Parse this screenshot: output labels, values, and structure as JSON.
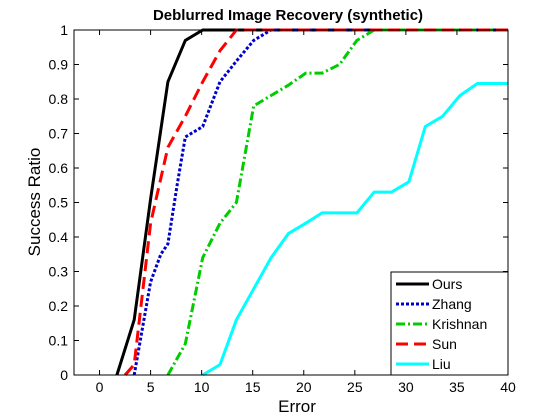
{
  "chart_data": {
    "type": "line",
    "title": "Deblurred Image Recovery (synthetic)",
    "xlabel": "Error",
    "ylabel": "Success Ratio",
    "xlim": [
      -2.5,
      40
    ],
    "ylim": [
      0,
      1
    ],
    "xticks": [
      0,
      5,
      10,
      15,
      20,
      25,
      30,
      35,
      40
    ],
    "yticks": [
      0,
      0.1,
      0.2,
      0.3,
      0.4,
      0.5,
      0.6,
      0.7,
      0.8,
      0.9,
      1
    ],
    "grid": false,
    "legend_position": "bottom-right",
    "series": [
      {
        "name": "Ours",
        "color": "#000000",
        "dash": "solid",
        "x": [
          1.7,
          3.4,
          5.0,
          6.7,
          8.4,
          10.1,
          11.8,
          13.4,
          15.1,
          16.8,
          40
        ],
        "y": [
          0,
          0.16,
          0.51,
          0.85,
          0.97,
          1.0,
          1.0,
          1.0,
          1.0,
          1.0,
          1.0
        ]
      },
      {
        "name": "Zhang",
        "color": "#0000cc",
        "dash": "dot",
        "x": [
          3.4,
          5.0,
          6.0,
          6.7,
          7.6,
          8.4,
          10.1,
          11.8,
          13.4,
          15.1,
          16.8,
          40
        ],
        "y": [
          0,
          0.27,
          0.35,
          0.38,
          0.55,
          0.69,
          0.72,
          0.85,
          0.91,
          0.97,
          1.0,
          1.0
        ]
      },
      {
        "name": "Krishnan",
        "color": "#00cc00",
        "dash": "dashdot",
        "x": [
          6.7,
          8.4,
          10.1,
          11.8,
          13.4,
          15.1,
          16.8,
          18.5,
          20.2,
          21.8,
          23.5,
          25.2,
          26.9,
          40
        ],
        "y": [
          0,
          0.09,
          0.34,
          0.44,
          0.5,
          0.78,
          0.81,
          0.84,
          0.875,
          0.875,
          0.9,
          0.97,
          1.0,
          1.0
        ]
      },
      {
        "name": "Sun",
        "color": "#ff0000",
        "dash": "dash",
        "x": [
          2.5,
          3.4,
          5.0,
          6.7,
          8.4,
          10.1,
          11.8,
          13.4,
          15.1,
          40
        ],
        "y": [
          0,
          0.03,
          0.44,
          0.66,
          0.75,
          0.85,
          0.94,
          1.0,
          1.0,
          1.0
        ]
      },
      {
        "name": "Liu",
        "color": "#00ffff",
        "dash": "solid",
        "x": [
          10.1,
          11.8,
          13.4,
          15.1,
          16.8,
          18.5,
          20.2,
          21.8,
          23.5,
          25.2,
          26.9,
          28.6,
          30.3,
          31.9,
          33.6,
          35.3,
          37.0,
          40
        ],
        "y": [
          0,
          0.03,
          0.16,
          0.25,
          0.34,
          0.41,
          0.44,
          0.47,
          0.47,
          0.47,
          0.53,
          0.53,
          0.56,
          0.72,
          0.75,
          0.81,
          0.845,
          0.845
        ]
      }
    ]
  }
}
